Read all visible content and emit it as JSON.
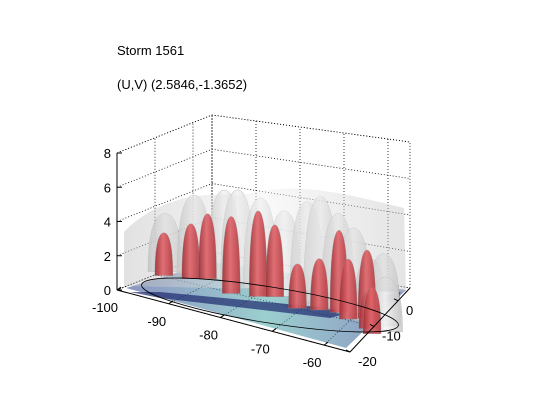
{
  "chart_data": {
    "type": "surface3d",
    "title": "Storm 1561",
    "subtitle": "(U,V) (2.5846,-1.3652)",
    "axes": {
      "x": {
        "range": [
          -100,
          -55
        ],
        "ticks": [
          -100,
          -90,
          -80,
          -70,
          -60
        ],
        "label": ""
      },
      "y": {
        "range": [
          -20,
          5
        ],
        "ticks": [
          -20,
          -10,
          0
        ],
        "label": ""
      },
      "z": {
        "range": [
          0,
          8
        ],
        "ticks": [
          0,
          2,
          4,
          6,
          8
        ],
        "label": ""
      }
    },
    "grid": true,
    "box": true,
    "surfaces": [
      {
        "color": "#d9d9d9",
        "opacity": 0.75,
        "description_level": "outer"
      },
      {
        "color": "#d2555a",
        "opacity": 0.9,
        "description_level": "inner"
      }
    ],
    "red_cores": [
      {
        "x": -97,
        "y": -5,
        "top": 2.5
      },
      {
        "x": -93,
        "y": -2,
        "top": 3.2
      },
      {
        "x": -91,
        "y": 1,
        "top": 3.8
      },
      {
        "x": -84,
        "y": -5,
        "top": 4.5
      },
      {
        "x": -80,
        "y": -2,
        "top": 5.0
      },
      {
        "x": -78,
        "y": 1,
        "top": 4.2
      },
      {
        "x": -72,
        "y": -3,
        "top": 2.6
      },
      {
        "x": -69,
        "y": 0,
        "top": 3.0
      },
      {
        "x": -66,
        "y": 2,
        "top": 4.8
      },
      {
        "x": -63,
        "y": -1,
        "top": 3.5
      },
      {
        "x": -61,
        "y": 3,
        "top": 4.0
      },
      {
        "x": -58,
        "y": -4,
        "top": 2.2
      },
      {
        "x": -56,
        "y": -7,
        "top": 2.7
      }
    ],
    "gray_ridges": [
      {
        "x": -98,
        "y": -2,
        "top": 3.4
      },
      {
        "x": -94,
        "y": 2,
        "top": 4.6
      },
      {
        "x": -89,
        "y": 4,
        "top": 5.2
      },
      {
        "x": -86,
        "y": 3,
        "top": 5.5
      },
      {
        "x": -82,
        "y": 4,
        "top": 5.3
      },
      {
        "x": -77,
        "y": 3,
        "top": 5.0
      },
      {
        "x": -73,
        "y": 4,
        "top": 5.8
      },
      {
        "x": -70,
        "y": 3,
        "top": 6.4
      },
      {
        "x": -67,
        "y": 4,
        "top": 5.6
      },
      {
        "x": -64,
        "y": 4,
        "top": 5.0
      },
      {
        "x": -60,
        "y": 2,
        "top": 3.6
      },
      {
        "x": -57,
        "y": 1,
        "top": 4.2
      },
      {
        "x": -55,
        "y": -3,
        "top": 3.2
      }
    ]
  }
}
